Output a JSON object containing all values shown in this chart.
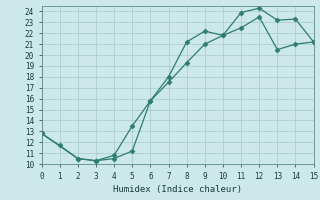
{
  "xlabel": "Humidex (Indice chaleur)",
  "ylabel": "",
  "background_color": "#cce8e8",
  "grid_color": "#b0d0d0",
  "line_color": "#2e7d6e",
  "xlim": [
    0,
    15
  ],
  "ylim": [
    10,
    24.5
  ],
  "xticks": [
    0,
    1,
    2,
    3,
    4,
    5,
    6,
    7,
    8,
    9,
    10,
    11,
    12,
    13,
    14,
    15
  ],
  "yticks": [
    10,
    11,
    12,
    13,
    14,
    15,
    16,
    17,
    18,
    19,
    20,
    21,
    22,
    23,
    24
  ],
  "curve1_x": [
    0,
    1,
    2,
    3,
    4,
    5,
    6,
    7,
    8,
    9,
    10,
    11,
    12,
    13,
    14,
    15
  ],
  "curve1_y": [
    12.8,
    11.7,
    10.5,
    10.3,
    10.5,
    11.2,
    15.8,
    18.0,
    21.2,
    22.2,
    21.8,
    23.9,
    24.3,
    23.2,
    23.3,
    21.2
  ],
  "curve2_x": [
    0,
    2,
    3,
    4,
    5,
    6,
    7,
    8,
    9,
    10,
    11,
    12,
    13,
    14,
    15
  ],
  "curve2_y": [
    12.8,
    10.5,
    10.3,
    10.8,
    13.5,
    15.8,
    17.5,
    19.3,
    21.0,
    21.8,
    22.5,
    23.5,
    20.5,
    21.0,
    21.2
  ],
  "marker": "D",
  "marker_size": 2.5
}
